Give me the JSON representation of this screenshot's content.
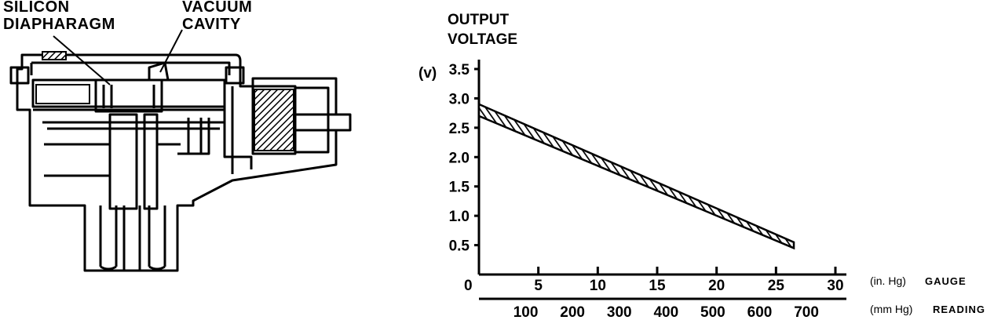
{
  "diagram": {
    "label_silicon_line1": "SILICON",
    "label_silicon_line2": "DIAPHARAGM",
    "label_vacuum_line1": "VACUUM",
    "label_vacuum_line2": "CAVITY"
  },
  "chart_data": {
    "type": "line",
    "title_line1": "OUTPUT",
    "title_line2": "VOLTAGE",
    "y_unit": "(v)",
    "ylim": [
      0,
      3.5
    ],
    "y_ticks": [
      0.5,
      1.0,
      1.5,
      2.0,
      2.5,
      3.0,
      3.5
    ],
    "y_tick_labels": [
      "0.5",
      "1.0",
      "1.5",
      "2.0",
      "2.5",
      "3.0",
      "3.5"
    ],
    "origin_label": "0",
    "x_primary": {
      "ticks": [
        5,
        10,
        15,
        20,
        25,
        30
      ],
      "labels": [
        "5",
        "10",
        "15",
        "20",
        "25",
        "30"
      ],
      "unit": "(in. Hg)",
      "caption": "GAUGE",
      "xlim": [
        0,
        30
      ]
    },
    "x_secondary": {
      "ticks": [
        100,
        200,
        300,
        400,
        500,
        600,
        700
      ],
      "labels": [
        "100",
        "200",
        "300",
        "400",
        "500",
        "600",
        "700"
      ],
      "unit": "(mm Hg)",
      "caption": "READING"
    },
    "band": {
      "x": [
        0,
        26.5
      ],
      "upper": [
        2.9,
        0.55
      ],
      "lower": [
        2.7,
        0.45
      ]
    },
    "grid": false
  }
}
